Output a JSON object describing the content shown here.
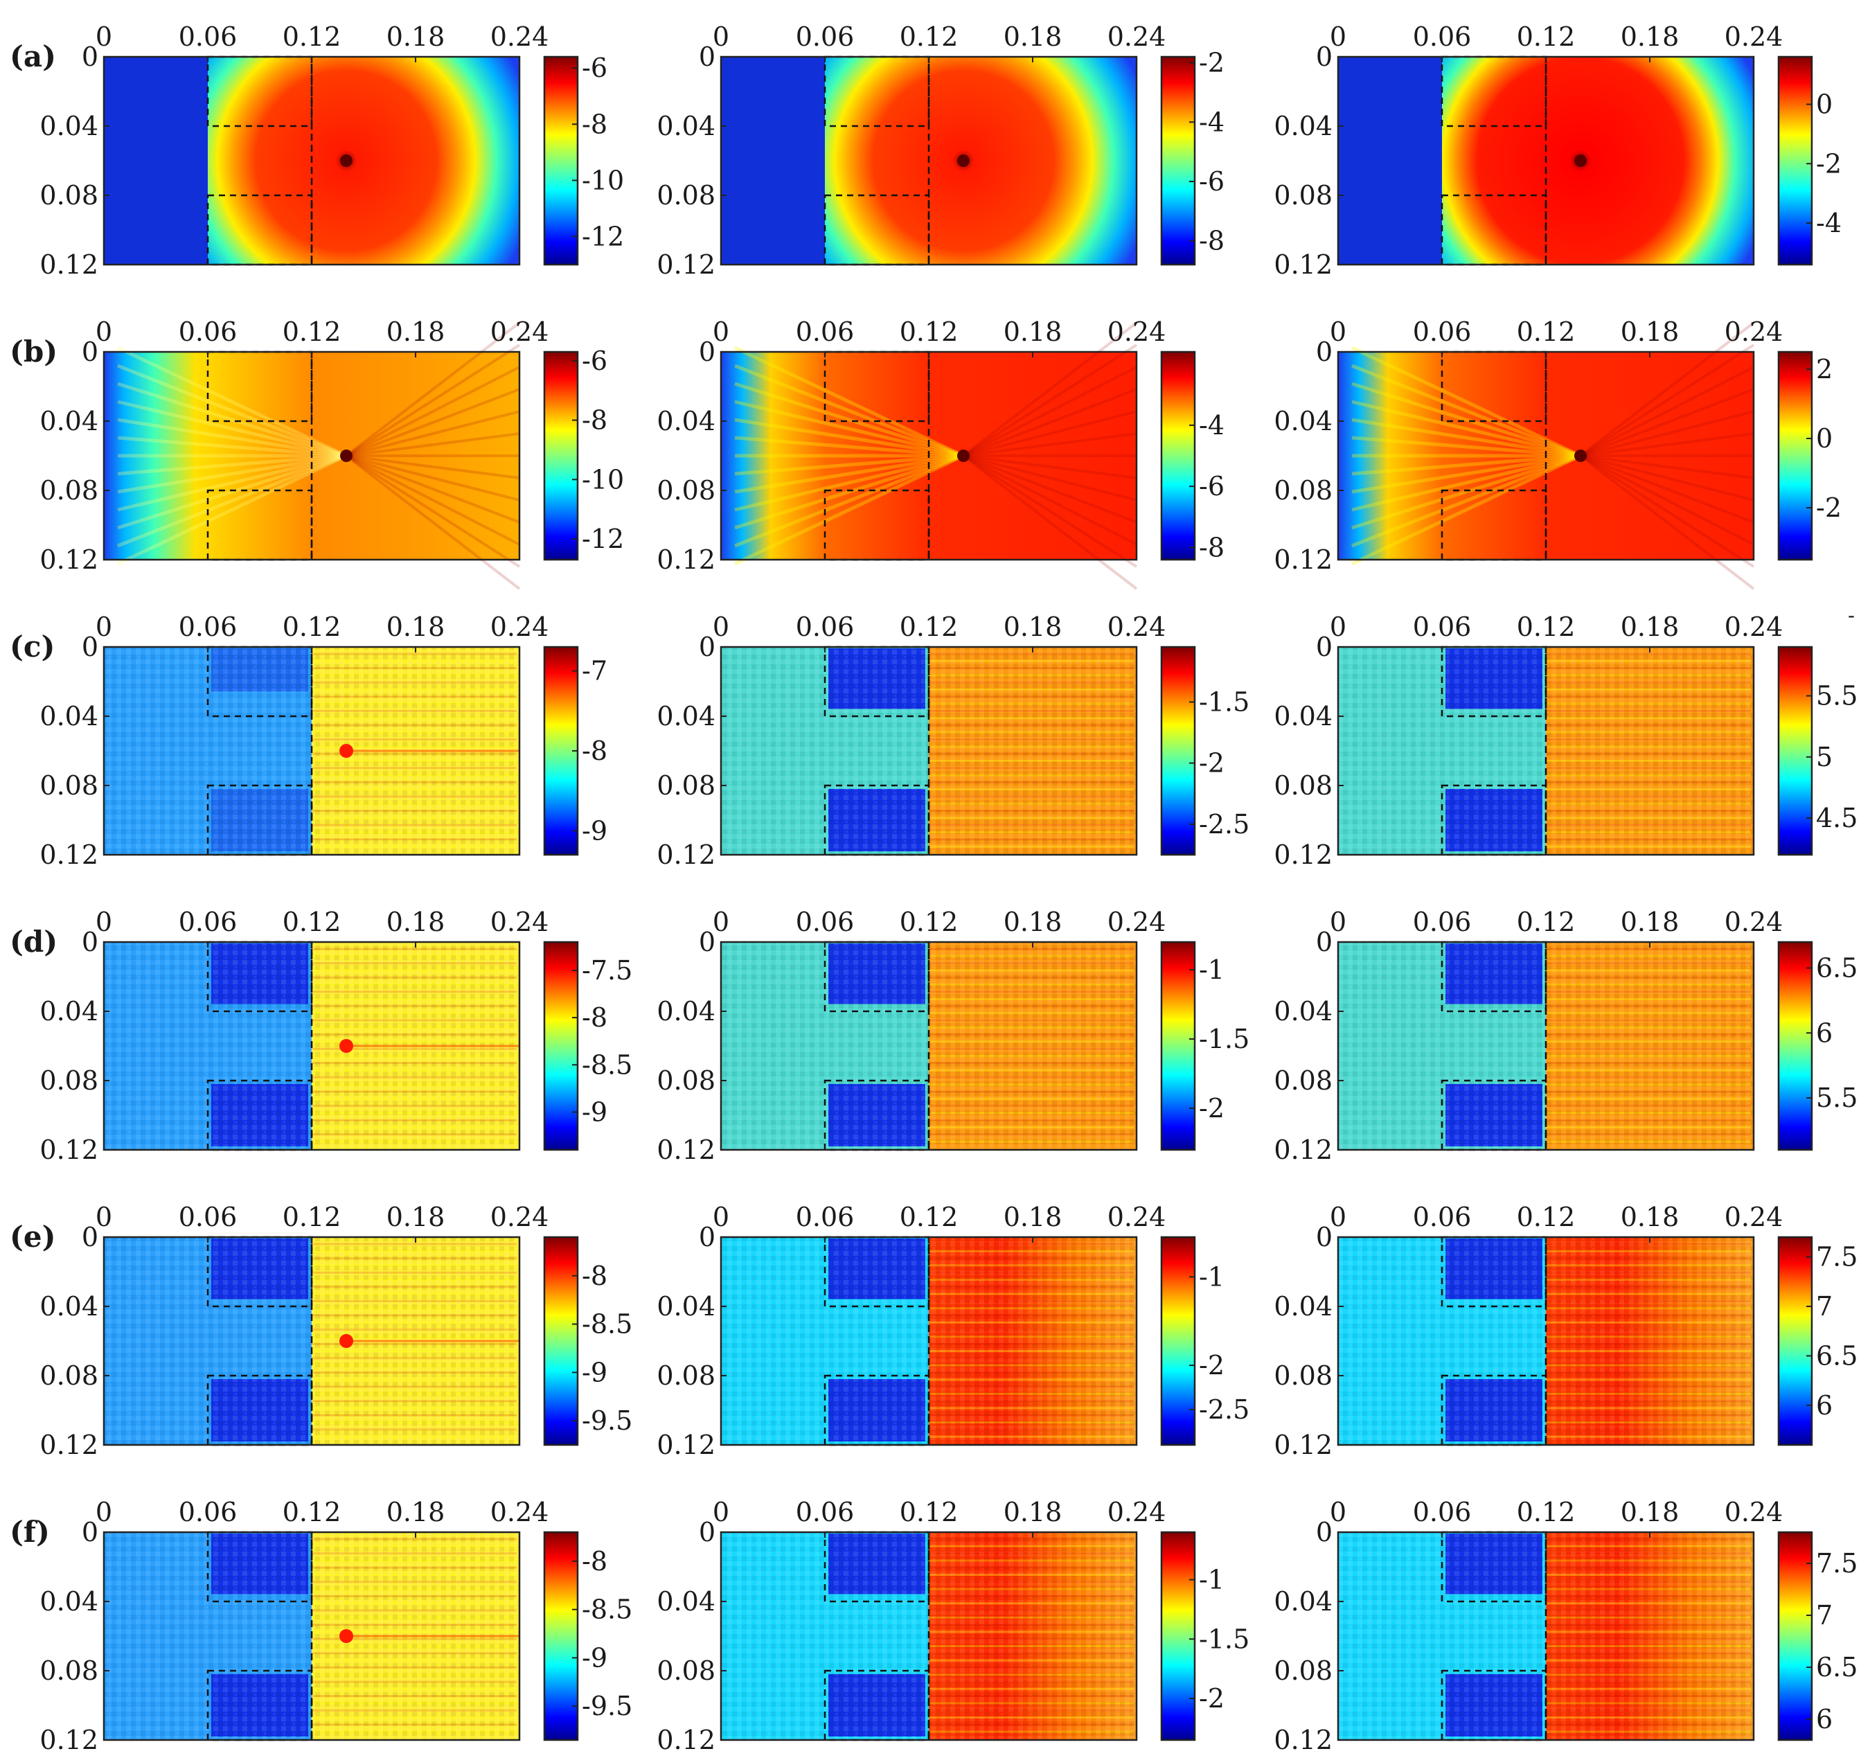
{
  "figure": {
    "row_labels": [
      "(a)",
      "(b)",
      "(c)",
      "(d)",
      "(e)",
      "(f)"
    ],
    "x_ticks": [
      "0",
      "0.06",
      "0.12",
      "0.18",
      "0.24"
    ],
    "y_ticks": [
      "0",
      "0.04",
      "0.08",
      "0.12"
    ],
    "stray_mark": "-"
  },
  "chart_data": {
    "type": "heatmap",
    "layout": "6 rows x 3 columns of heatmap panels, each with its own colorbar",
    "x_range": [
      0,
      0.24
    ],
    "y_range": [
      0,
      0.12
    ],
    "x_ticks": [
      0,
      0.06,
      0.12,
      0.18,
      0.24
    ],
    "y_ticks": [
      0,
      0.04,
      0.08,
      0.12
    ],
    "colormap": "jet",
    "source_location": {
      "x": 0.14,
      "y": 0.06
    },
    "dashed_regions": [
      {
        "x": [
          0.06,
          0.12
        ],
        "y": [
          0.0,
          0.04
        ]
      },
      {
        "x": [
          0.06,
          0.12
        ],
        "y": [
          0.08,
          0.12
        ]
      },
      {
        "x": [
          0.12,
          0.12
        ],
        "y": [
          0.0,
          0.12
        ]
      }
    ],
    "rows": [
      {
        "label": "(a)",
        "pattern": "rings",
        "panels": [
          {
            "range": [
              -13,
              -5.6
            ],
            "ticks": [
              "-6",
              "-8",
              "-10",
              "-12"
            ]
          },
          {
            "range": [
              -8.8,
              -1.8
            ],
            "ticks": [
              "-2",
              "-4",
              "-6",
              "-8"
            ]
          },
          {
            "range": [
              -5.4,
              1.6
            ],
            "ticks": [
              "0",
              "-2",
              "-4"
            ]
          }
        ]
      },
      {
        "label": "(b)",
        "pattern": "fan",
        "panels": [
          {
            "range": [
              -12.7,
              -5.7
            ],
            "ticks": [
              "-6",
              "-8",
              "-10",
              "-12"
            ]
          },
          {
            "range": [
              -8.4,
              -1.6
            ],
            "ticks": [
              "-4",
              "-6",
              "-8"
            ]
          },
          {
            "range": [
              -3.5,
              2.5
            ],
            "ticks": [
              "2",
              "0",
              "-2"
            ]
          }
        ]
      },
      {
        "label": "(c)",
        "pattern": "noisy",
        "panels": [
          {
            "range": [
              -9.3,
              -6.7
            ],
            "ticks": [
              "-7",
              "-8",
              "-9"
            ]
          },
          {
            "range": [
              -2.75,
              -1.05
            ],
            "ticks": [
              "-1.5",
              "-2",
              "-2.5"
            ]
          },
          {
            "range": [
              4.2,
              5.9
            ],
            "ticks": [
              "5.5",
              "5",
              "4.5"
            ]
          }
        ]
      },
      {
        "label": "(d)",
        "pattern": "noisy",
        "panels": [
          {
            "range": [
              -9.4,
              -7.2
            ],
            "ticks": [
              "-7.5",
              "-8",
              "-8.5",
              "-9"
            ]
          },
          {
            "range": [
              -2.3,
              -0.8
            ],
            "ticks": [
              "-1",
              "-1.5",
              "-2"
            ]
          },
          {
            "range": [
              5.1,
              6.7
            ],
            "ticks": [
              "6.5",
              "6",
              "5.5"
            ]
          }
        ]
      },
      {
        "label": "(e)",
        "pattern": "noisy",
        "panels": [
          {
            "range": [
              -9.75,
              -7.6
            ],
            "ticks": [
              "-8",
              "-8.5",
              "-9",
              "-9.5"
            ]
          },
          {
            "range": [
              -2.9,
              -0.55
            ],
            "ticks": [
              "-1",
              "-2.5",
              "-2"
            ]
          },
          {
            "range": [
              5.6,
              7.7
            ],
            "ticks": [
              "7.5",
              "7",
              "6.5",
              "6"
            ]
          }
        ]
      },
      {
        "label": "(f)",
        "pattern": "noisy",
        "panels": [
          {
            "range": [
              -9.85,
              -7.7
            ],
            "ticks": [
              "-8",
              "-8.5",
              "-9",
              "-9.5"
            ]
          },
          {
            "range": [
              -2.35,
              -0.6
            ],
            "ticks": [
              "-1",
              "-1.5",
              "-2"
            ]
          },
          {
            "range": [
              5.8,
              7.8
            ],
            "ticks": [
              "7.5",
              "7",
              "6.5",
              "6"
            ]
          }
        ]
      }
    ]
  }
}
